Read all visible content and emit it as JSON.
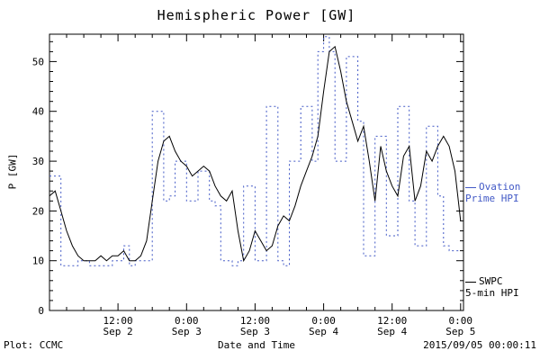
{
  "footer": {
    "left": "Plot: CCMC",
    "right": "2015/09/05 00:00:11"
  },
  "legend": {
    "ovation": {
      "line1": "Ovation",
      "line2": "Prime HPI",
      "color": "#4259c6"
    },
    "swpc": {
      "line1": "SWPC",
      "line2": "5-min HPI",
      "color": "#000000"
    }
  },
  "chart_data": {
    "type": "line",
    "title": "Hemispheric Power [GW]",
    "xlabel": "Date and Time",
    "ylabel": "P [GW]",
    "ylim": [
      0,
      55.5
    ],
    "xlim_hours": [
      0,
      72.5
    ],
    "x_unit": "hours since 2015 Sep 2 00:00",
    "grid": false,
    "legend_position": "right",
    "y_ticks": [
      0,
      10,
      20,
      30,
      40,
      50
    ],
    "x_ticks": [
      {
        "hour": 12,
        "line1": "12:00",
        "line2": "Sep 2"
      },
      {
        "hour": 24,
        "line1": "0:00",
        "line2": "Sep 3"
      },
      {
        "hour": 36,
        "line1": "12:00",
        "line2": "Sep 3"
      },
      {
        "hour": 48,
        "line1": "0:00",
        "line2": "Sep 4"
      },
      {
        "hour": 60,
        "line1": "12:00",
        "line2": "Sep 4"
      },
      {
        "hour": 72,
        "line1": "0:00",
        "line2": "Sep 5"
      }
    ],
    "x_hours": [
      0,
      1,
      2,
      3,
      4,
      5,
      6,
      7,
      8,
      9,
      10,
      11,
      12,
      13,
      14,
      15,
      16,
      17,
      18,
      19,
      20,
      21,
      22,
      23,
      24,
      25,
      26,
      27,
      28,
      29,
      30,
      31,
      32,
      33,
      34,
      35,
      36,
      37,
      38,
      39,
      40,
      41,
      42,
      43,
      44,
      45,
      46,
      47,
      48,
      49,
      50,
      51,
      52,
      53,
      54,
      55,
      56,
      57,
      58,
      59,
      60,
      61,
      62,
      63,
      64,
      65,
      66,
      67,
      68,
      69,
      70,
      71,
      72
    ],
    "series": [
      {
        "name": "Ovation Prime HPI",
        "color": "#4259c6",
        "style": "dotted-step",
        "step": true,
        "dash": "2,3",
        "values": [
          27,
          27,
          9,
          9,
          9,
          10,
          10,
          9,
          9,
          9,
          9,
          10,
          10,
          13,
          9,
          10,
          10,
          10,
          40,
          40,
          22,
          23,
          30,
          30,
          22,
          22,
          28,
          28,
          22,
          21,
          10,
          10,
          9,
          10,
          25,
          25,
          10,
          10,
          41,
          41,
          10,
          9,
          30,
          30,
          41,
          41,
          30,
          52,
          55,
          52,
          30,
          30,
          51,
          51,
          38,
          11,
          11,
          35,
          35,
          15,
          15,
          41,
          41,
          22,
          13,
          13,
          37,
          37,
          23,
          13,
          12,
          12,
          12
        ]
      },
      {
        "name": "SWPC 5-min HPI",
        "color": "#000000",
        "style": "solid",
        "step": false,
        "dash": "",
        "values": [
          23,
          24,
          20,
          16,
          13,
          11,
          10,
          10,
          10,
          11,
          10,
          11,
          11,
          12,
          10,
          10,
          11,
          14,
          22,
          30,
          34,
          35,
          32,
          30,
          29,
          27,
          28,
          29,
          28,
          25,
          23,
          22,
          24,
          16,
          10,
          12,
          16,
          14,
          12,
          13,
          17,
          19,
          18,
          21,
          25,
          28,
          31,
          35,
          44,
          52,
          53,
          48,
          42,
          38,
          34,
          37,
          30,
          22,
          33,
          28,
          25,
          23,
          31,
          33,
          22,
          25,
          32,
          30,
          33,
          35,
          33,
          28,
          18
        ]
      }
    ]
  }
}
